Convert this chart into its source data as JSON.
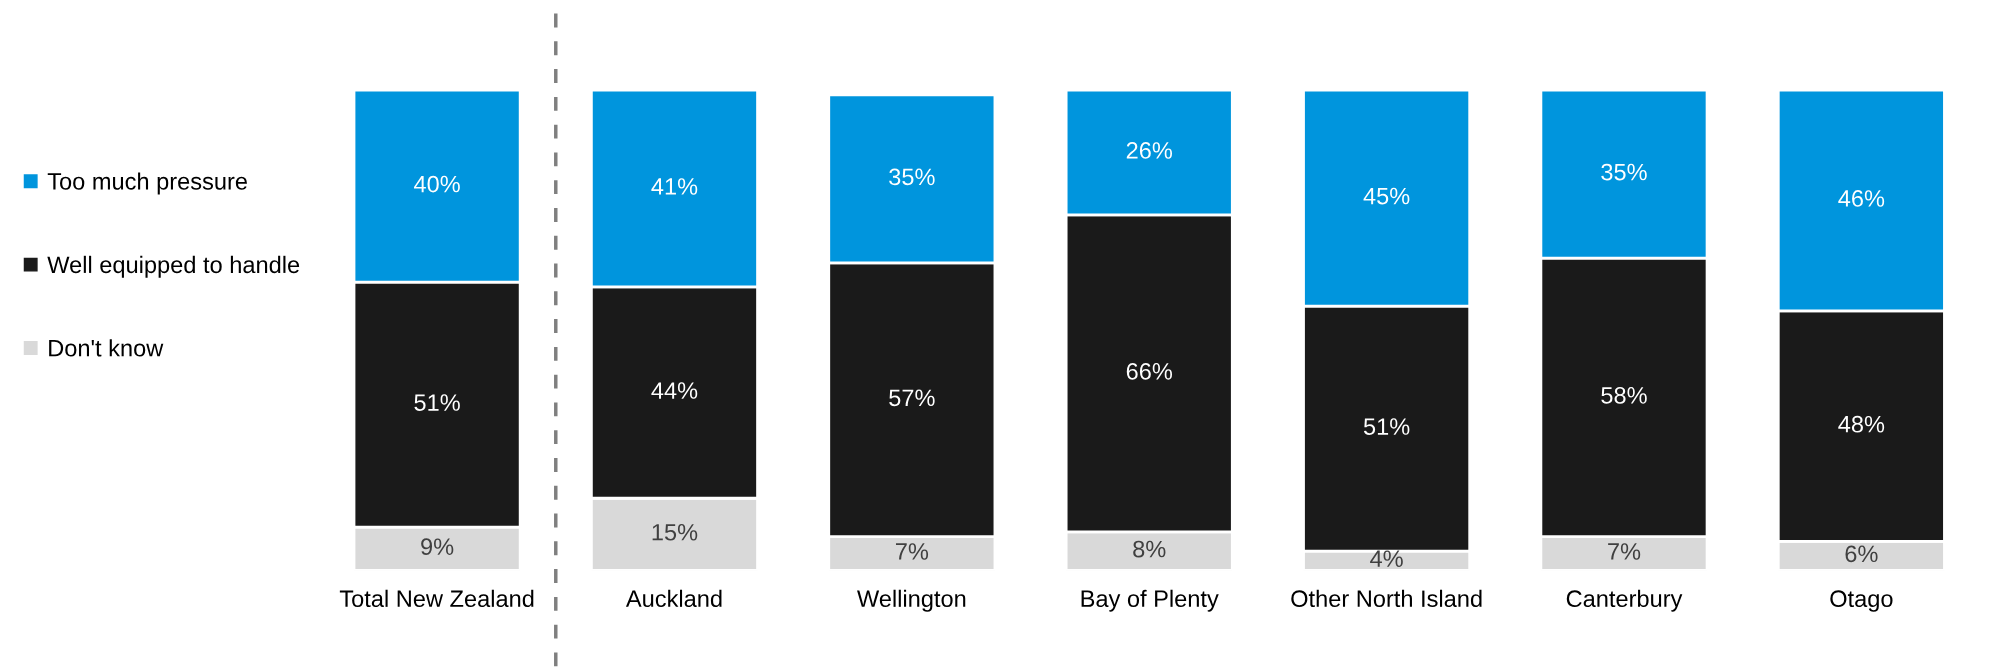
{
  "chart_data": {
    "type": "bar",
    "stacked": true,
    "legend": "left",
    "marker": "square",
    "grid": false,
    "categories": [
      "Total New Zealand",
      "Auckland",
      "Wellington",
      "Bay of Plenty",
      "Other North Island",
      "Canterbury",
      "Otago"
    ],
    "series": [
      {
        "name": "Don't know",
        "color": "#d9d9d9",
        "values": [
          9,
          15,
          7,
          8,
          4,
          7,
          6
        ],
        "value_labels": [
          "9%",
          "15%",
          "7%",
          "8%",
          "4%",
          "7%",
          "6%"
        ]
      },
      {
        "name": "Well equipped to handle",
        "color": "#1a1a1a",
        "values": [
          51,
          44,
          57,
          66,
          51,
          58,
          48
        ],
        "value_labels": [
          "51%",
          "44%",
          "57%",
          "66%",
          "51%",
          "58%",
          "48%"
        ]
      },
      {
        "name": "Too much pressure",
        "color": "#0095dd",
        "values": [
          40,
          41,
          35,
          26,
          45,
          35,
          46
        ],
        "value_labels": [
          "40%",
          "41%",
          "35%",
          "26%",
          "45%",
          "35%",
          "46%"
        ]
      }
    ]
  }
}
